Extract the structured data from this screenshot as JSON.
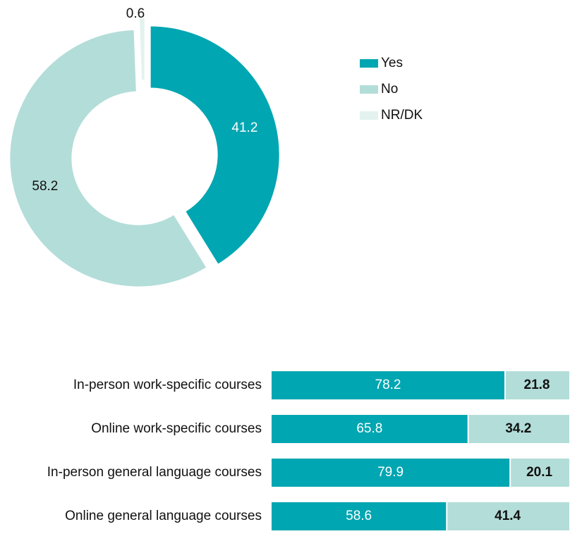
{
  "chart_data": [
    {
      "type": "pie",
      "donut": true,
      "labels": [
        "Yes",
        "No",
        "NR/DK"
      ],
      "values": [
        41.2,
        58.2,
        0.6
      ],
      "colors": [
        "#00a6b1",
        "#b3ddd8",
        "#e3f2ef"
      ]
    },
    {
      "type": "hbar",
      "stacked": true,
      "categories": [
        "In-person work-specific courses",
        "Online work-specific courses",
        "In-person general language courses",
        "Online general language courses"
      ],
      "xlim": [
        0,
        100
      ],
      "series": [
        {
          "color": "#00a6b1",
          "values": [
            78.2,
            65.8,
            79.9,
            58.6
          ]
        },
        {
          "color": "#b3ddd8",
          "values": [
            21.8,
            34.2,
            20.1,
            41.4
          ]
        }
      ]
    }
  ]
}
